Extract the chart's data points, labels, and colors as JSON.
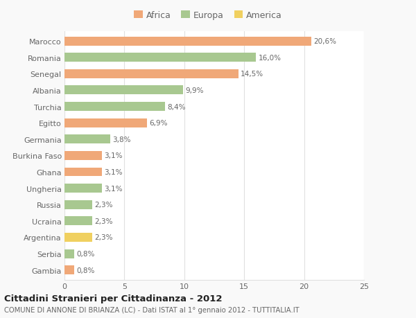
{
  "countries": [
    "Marocco",
    "Romania",
    "Senegal",
    "Albania",
    "Turchia",
    "Egitto",
    "Germania",
    "Burkina Faso",
    "Ghana",
    "Ungheria",
    "Russia",
    "Ucraina",
    "Argentina",
    "Serbia",
    "Gambia"
  ],
  "values": [
    20.6,
    16.0,
    14.5,
    9.9,
    8.4,
    6.9,
    3.8,
    3.1,
    3.1,
    3.1,
    2.3,
    2.3,
    2.3,
    0.8,
    0.8
  ],
  "labels": [
    "20,6%",
    "16,0%",
    "14,5%",
    "9,9%",
    "8,4%",
    "6,9%",
    "3,8%",
    "3,1%",
    "3,1%",
    "3,1%",
    "2,3%",
    "2,3%",
    "2,3%",
    "0,8%",
    "0,8%"
  ],
  "continents": [
    "Africa",
    "Europa",
    "Africa",
    "Europa",
    "Europa",
    "Africa",
    "Europa",
    "Africa",
    "Africa",
    "Europa",
    "Europa",
    "Europa",
    "America",
    "Europa",
    "Africa"
  ],
  "colors": {
    "Africa": "#F0A878",
    "Europa": "#A8C890",
    "America": "#F0D060"
  },
  "legend": [
    "Africa",
    "Europa",
    "America"
  ],
  "legend_colors": [
    "#F0A878",
    "#A8C890",
    "#F0D060"
  ],
  "title1": "Cittadini Stranieri per Cittadinanza - 2012",
  "title2": "COMUNE DI ANNONE DI BRIANZA (LC) - Dati ISTAT al 1° gennaio 2012 - TUTTITALIA.IT",
  "xlim": [
    0,
    25
  ],
  "xticks": [
    0,
    5,
    10,
    15,
    20,
    25
  ],
  "background_color": "#f9f9f9",
  "bar_background": "#ffffff",
  "grid_color": "#e0e0e0",
  "text_color": "#666666",
  "title_color": "#222222"
}
